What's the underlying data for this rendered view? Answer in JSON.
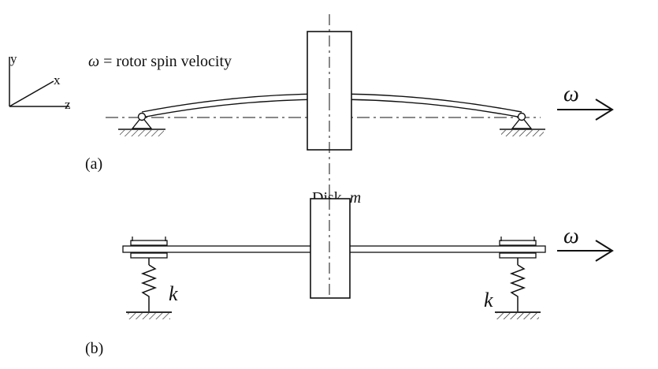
{
  "axes": {
    "y": "y",
    "x": "x",
    "z": "z"
  },
  "omega_caption": {
    "symbol": "ω",
    "text": " = rotor spin velocity"
  },
  "omega_symbol": "ω",
  "panel_a_label": "(a)",
  "panel_b_label": "(b)",
  "disk_label": {
    "text": "Disk, ",
    "mass": "m"
  },
  "spring_label": "k",
  "colors": {
    "ink": "#111111",
    "background": "#ffffff"
  }
}
